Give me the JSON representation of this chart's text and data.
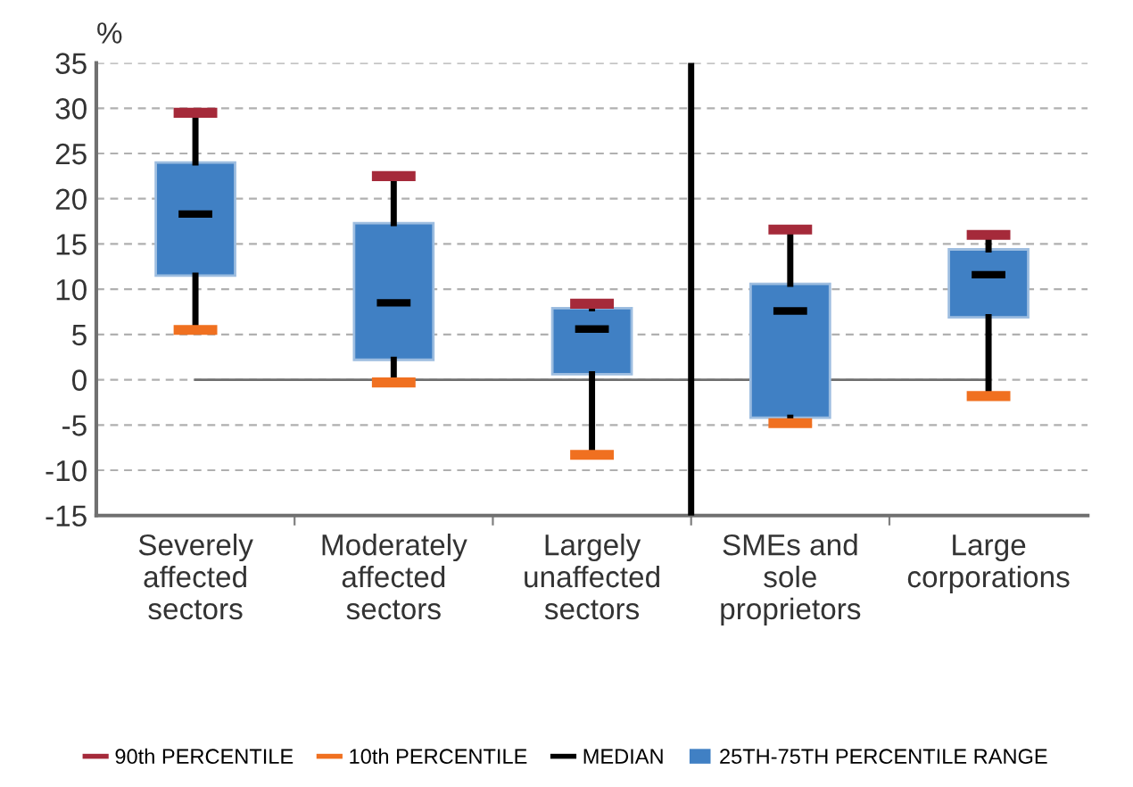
{
  "chart_data": {
    "type": "box",
    "ylabel": "%",
    "categories": [
      "Severely\naffected\nsectors",
      "Moderately\naffected\nsectors",
      "Largely\nunaffected\nsectors",
      "SMEs and\nsole\nproprietors",
      "Large\ncorporations"
    ],
    "series": [
      {
        "name": "25TH-75TH PERCENTILE RANGE",
        "color": "#4080c4",
        "boxes": [
          {
            "low": 5.5,
            "q1": 11.5,
            "median": 18.3,
            "q3": 24,
            "high": 29.5
          },
          {
            "low": -0.3,
            "q1": 2.2,
            "median": 8.5,
            "q3": 17.3,
            "high": 22.5
          },
          {
            "low": -8.3,
            "q1": 0.6,
            "median": 5.6,
            "q3": 7.9,
            "high": 8.4
          },
          {
            "low": -4.8,
            "q1": -4.2,
            "median": 7.6,
            "q3": 10.6,
            "high": 16.6
          },
          {
            "low": -1.8,
            "q1": 6.9,
            "median": 11.6,
            "q3": 14.4,
            "high": 16.0
          }
        ]
      }
    ],
    "annotations": [
      "90th PERCENTILE",
      "10th PERCENTILE",
      "MEDIAN"
    ],
    "ylim": [
      -15,
      35
    ],
    "yticks": [
      -15,
      -10,
      -5,
      0,
      5,
      10,
      15,
      20,
      25,
      30,
      35
    ],
    "ref_lines": [
      {
        "axis": "y",
        "value": 0,
        "color": "#707070"
      }
    ],
    "grid": "y",
    "legend": "bottom"
  }
}
